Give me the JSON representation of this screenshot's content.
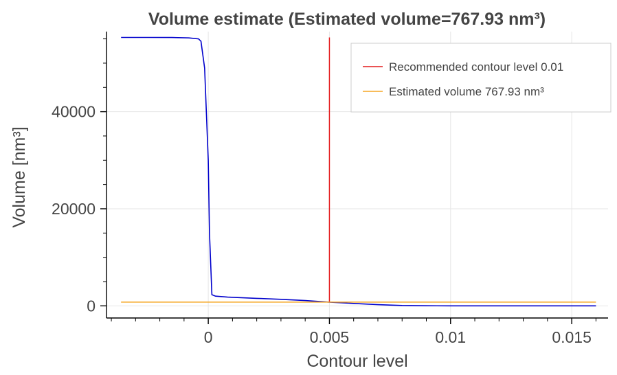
{
  "chart_data": {
    "type": "line",
    "title": "Volume estimate (Estimated volume=767.93 nm³)",
    "xlabel": "Contour level",
    "ylabel": "Volume [nm³]",
    "xlim": [
      -0.0042,
      0.0165
    ],
    "ylim": [
      -2500,
      56500
    ],
    "xticks": [
      0,
      0.005,
      0.01,
      0.015
    ],
    "xtick_labels": [
      "0",
      "0.005",
      "0.01",
      "0.015"
    ],
    "yticks": [
      0,
      20000,
      40000
    ],
    "ytick_labels": [
      "0",
      "20000",
      "40000"
    ],
    "grid": true,
    "legend_position": "top-right",
    "series": [
      {
        "name": "",
        "color": "#0000cc",
        "kind": "line",
        "x": [
          -0.0036,
          -0.0025,
          -0.0015,
          -0.0008,
          -0.0004,
          -0.0003,
          -0.00015,
          0.0,
          5e-05,
          0.00015,
          0.0003,
          0.0008,
          0.002,
          0.003,
          0.004,
          0.005,
          0.006,
          0.007,
          0.008,
          0.009,
          0.01,
          0.012,
          0.014,
          0.016
        ],
        "y": [
          55300,
          55300,
          55280,
          55200,
          55000,
          54500,
          49000,
          30000,
          15000,
          2300,
          2000,
          1800,
          1550,
          1350,
          1100,
          768,
          500,
          250,
          80,
          20,
          5,
          0,
          0,
          0
        ]
      },
      {
        "name": "Recommended contour level 0.01",
        "color": "#e41a1c",
        "kind": "vline",
        "x": 0.005,
        "y_range": [
          768,
          55300
        ]
      },
      {
        "name": "Estimated volume 767.93 nm³",
        "color": "#f5a623",
        "kind": "hline",
        "y": 767.93,
        "x_range": [
          -0.0036,
          0.016
        ]
      }
    ]
  }
}
